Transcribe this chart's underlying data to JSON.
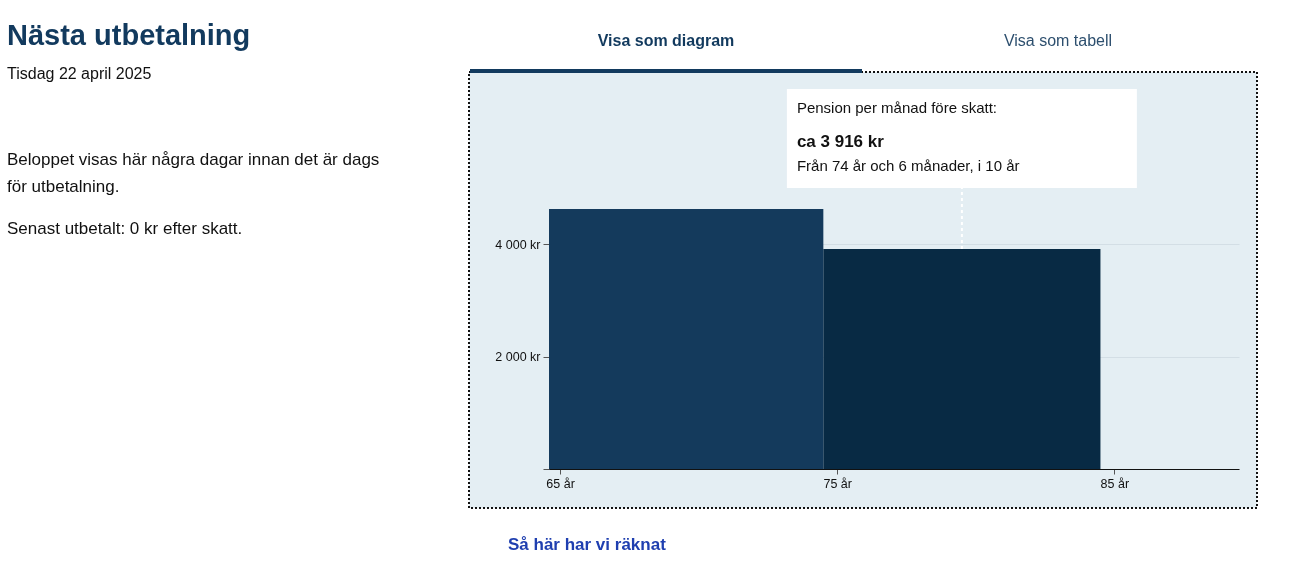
{
  "chart_data": [
    {
      "type": "other",
      "title": "Nästa utbetalning",
      "subtitle": "Tisdag 22 april 2025",
      "annotations": [
        "Beloppet visas här några dagar innan det är dags för utbetalning.",
        "Senast utbetalt: 0 kr efter skatt."
      ]
    },
    {
      "type": "histogram",
      "bins": [
        64.6,
        74.5,
        84.5
      ],
      "values": [
        4630,
        3916
      ],
      "colors": [
        "#143a5c",
        "#082a44"
      ],
      "xlim": [
        64.6,
        89.5
      ],
      "xticks": [
        {
          "value": 65,
          "label": "65 år"
        },
        {
          "value": 75,
          "label": "75 år"
        },
        {
          "value": 85,
          "label": "85 år"
        }
      ],
      "ylim": [
        0,
        4630
      ],
      "yticks": [
        {
          "value": 0,
          "label": null
        },
        {
          "value": 2000,
          "label": "2 000 kr"
        },
        {
          "value": 4000,
          "label": "4 000 kr"
        }
      ],
      "grid": "y",
      "annotations": [
        "Pension per månad före skatt:",
        "ca 3 916 kr",
        {
          "text": "Från 74 år och 6 månader, i 10 år",
          "x": 79.5,
          "y": 3916
        },
        "Visa som diagram",
        "Visa som tabell",
        "Så här har vi räknat"
      ]
    }
  ]
}
